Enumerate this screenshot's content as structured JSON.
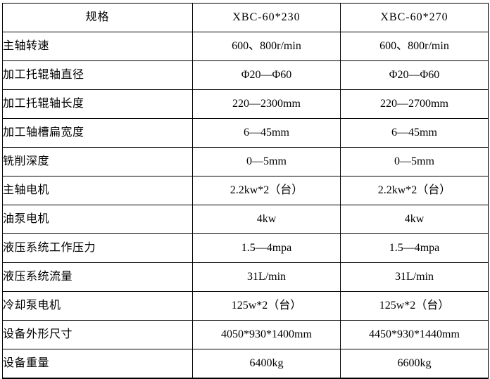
{
  "table": {
    "header": [
      "规格",
      "XBC-60*230",
      "XBC-60*270"
    ],
    "rows": [
      {
        "label": "主轴转速",
        "values": [
          "600、800r/min",
          "600、800r/min"
        ]
      },
      {
        "label": "加工托辊轴直径",
        "values": [
          "Φ20—Φ60",
          "Φ20—Φ60"
        ]
      },
      {
        "label": "加工托辊轴长度",
        "values": [
          "220—2300mm",
          "220—2700mm"
        ]
      },
      {
        "label": "加工轴槽扁宽度",
        "values": [
          "6—45mm",
          "6—45mm"
        ]
      },
      {
        "label": "铣削深度",
        "values": [
          "0—5mm",
          "0—5mm"
        ]
      },
      {
        "label": "主轴电机",
        "values": [
          "2.2kw*2（台）",
          "2.2kw*2（台）"
        ]
      },
      {
        "label": "油泵电机",
        "values": [
          "4kw",
          "4kw"
        ]
      },
      {
        "label": "液压系统工作压力",
        "values": [
          "1.5—4mpa",
          "1.5—4mpa"
        ]
      },
      {
        "label": "液压系统流量",
        "values": [
          "31L/min",
          "31L/min"
        ]
      },
      {
        "label": "冷却泵电机",
        "values": [
          "125w*2（台）",
          "125w*2（台）"
        ]
      },
      {
        "label": "设备外形尺寸",
        "values": [
          "4050*930*1400mm",
          "4450*930*1440mm"
        ]
      },
      {
        "label": "设备重量",
        "values": [
          "6400kg",
          "6600kg"
        ]
      }
    ]
  }
}
